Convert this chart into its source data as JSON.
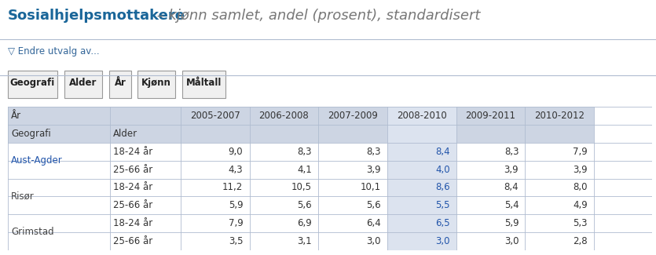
{
  "title_bold": "Sosialhjelpsmottakere",
  "title_italic": " – kjønn samlet, andel (prosent), standardisert",
  "endre_text": "▽ Endre utvalg av...",
  "buttons": [
    "Geografi",
    "Alder",
    "År",
    "Kjønn",
    "Måltall"
  ],
  "col_headers": [
    "2005-2007",
    "2006-2008",
    "2007-2009",
    "2008-2010",
    "2009-2011",
    "2010-2012"
  ],
  "row_header1": "År",
  "row_header2_col1": "Geografi",
  "row_header2_col2": "Alder",
  "geographies": [
    "Aust-Agder",
    "Risør",
    "Grimstad"
  ],
  "age_groups": [
    "18-24 år",
    "25-66 år"
  ],
  "data": [
    [
      "9,0",
      "8,3",
      "8,3",
      "8,4",
      "8,3",
      "7,9"
    ],
    [
      "4,3",
      "4,1",
      "3,9",
      "4,0",
      "3,9",
      "3,9"
    ],
    [
      "11,2",
      "10,5",
      "10,1",
      "8,6",
      "8,4",
      "8,0"
    ],
    [
      "5,9",
      "5,6",
      "5,6",
      "5,5",
      "5,4",
      "4,9"
    ],
    [
      "7,9",
      "6,9",
      "6,4",
      "6,5",
      "5,9",
      "5,3"
    ],
    [
      "3,5",
      "3,1",
      "3,0",
      "3,0",
      "3,0",
      "2,8"
    ]
  ],
  "highlight_col_idx": 3,
  "bg_color": "#ffffff",
  "header_bg": "#cdd5e3",
  "highlight_col_bg": "#dce3ef",
  "link_color": "#2255aa",
  "highlight_text_color": "#2255aa",
  "title_color": "#1a6699",
  "italic_color": "#777777",
  "border_color": "#b0bcd0",
  "button_border": "#999999",
  "button_bg": "#f0f0f0",
  "button_text": "#222222",
  "endre_color": "#336699",
  "text_color": "#333333",
  "geo_text_color": "#444444"
}
